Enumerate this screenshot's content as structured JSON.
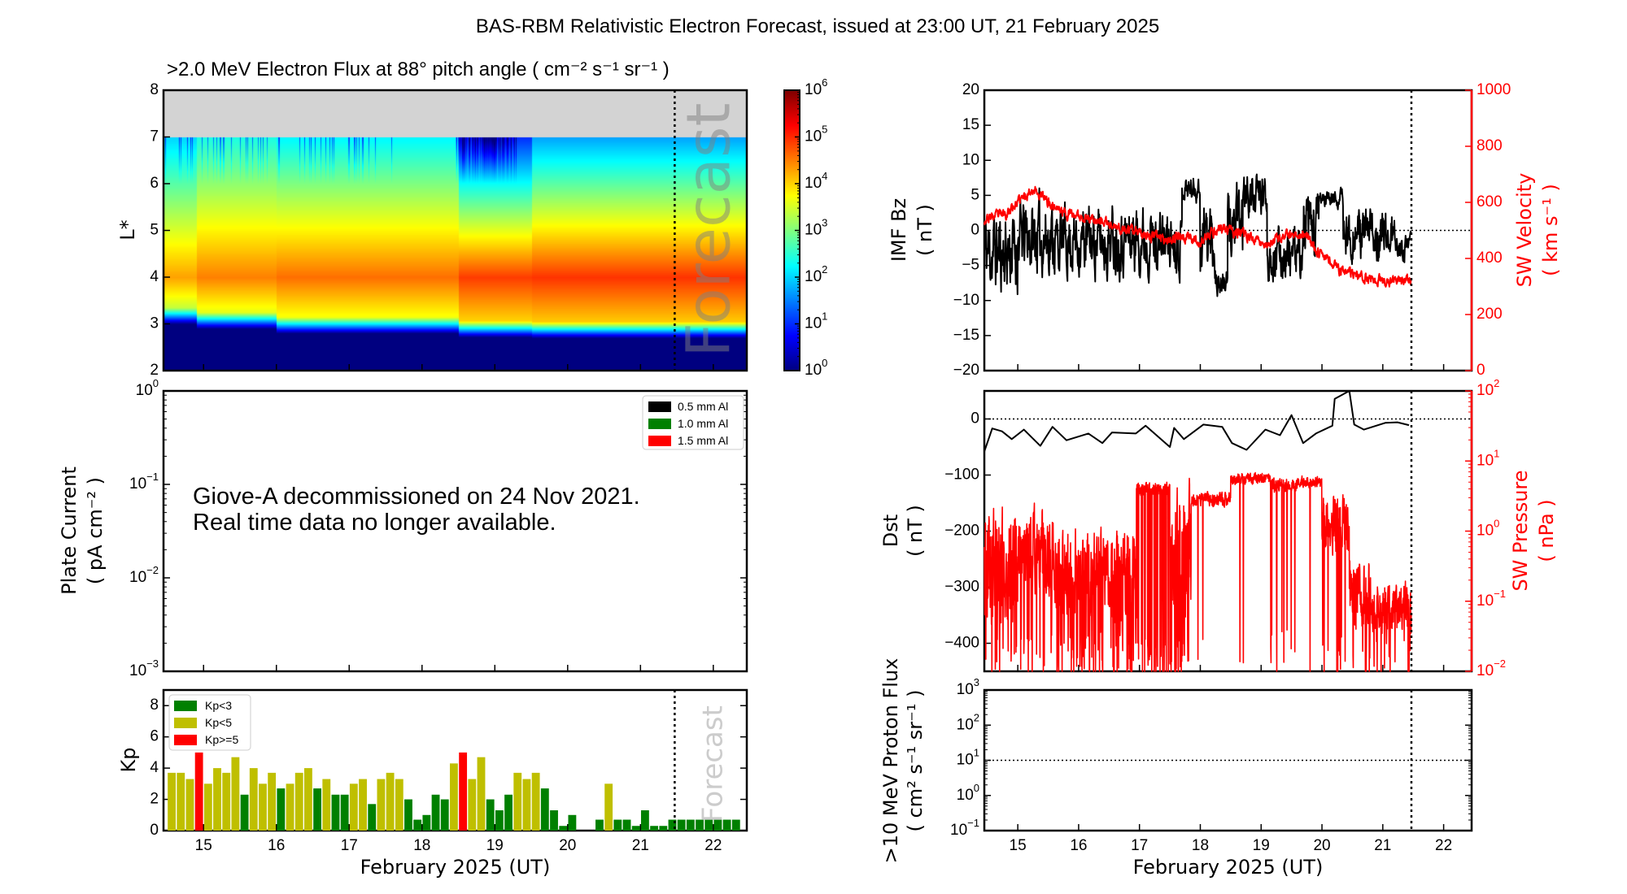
{
  "title": "BAS-RBM Relativistic Electron Forecast, issued at 23:00 UT, 21 February 2025",
  "forecast_label": "Forecast",
  "colors": {
    "kp_low": "#008000",
    "kp_mid": "#bfbf00",
    "kp_high": "#ff0000",
    "sw": "#ff0000",
    "gap": "#d3d3d3"
  },
  "chart_data": [
    {
      "id": "electron_flux",
      "type": "heatmap",
      "title": ">2.0 MeV Electron Flux at 88° pitch angle ( cm⁻² s⁻¹ sr⁻¹ )",
      "ylabel": "L*",
      "xlim": [
        14.45,
        22.46
      ],
      "ylim": [
        2,
        8
      ],
      "yticks": [
        2,
        3,
        4,
        5,
        6,
        7,
        8
      ],
      "ytick_labels": [
        "2",
        "3",
        "4",
        "5",
        "6",
        "7",
        "8"
      ],
      "forecast_start": 21.47,
      "no_data_above_L": 7,
      "colorbar": {
        "scale": "log",
        "range_exp": [
          0,
          6
        ],
        "base": "10",
        "tick_exps": [
          "0",
          "1",
          "2",
          "3",
          "4",
          "5",
          "6"
        ],
        "colormap": "jet"
      },
      "profile_segments": [
        {
          "start": 14.45,
          "end": 14.9,
          "peak_log_flux": 4.3,
          "inner_edge_L": 3.0,
          "log_flux_at_L7": 2.0
        },
        {
          "start": 14.9,
          "end": 16.0,
          "peak_log_flux": 4.5,
          "inner_edge_L": 2.9,
          "log_flux_at_L7": 2.4
        },
        {
          "start": 16.0,
          "end": 18.5,
          "peak_log_flux": 4.6,
          "inner_edge_L": 2.8,
          "log_flux_at_L7": 2.2
        },
        {
          "start": 18.5,
          "end": 19.5,
          "peak_log_flux": 4.9,
          "inner_edge_L": 2.72,
          "log_flux_at_L7": 1.0
        },
        {
          "start": 19.5,
          "end": 22.46,
          "peak_log_flux": 4.95,
          "inner_edge_L": 2.7,
          "log_flux_at_L7": 1.7
        }
      ]
    },
    {
      "id": "plate_current",
      "type": "line",
      "ylabel": "Plate Current",
      "ylabel_units": "( pA cm⁻² )",
      "yscale": "log",
      "ylim_exp": [
        -3,
        0
      ],
      "base": "10",
      "ytick_exps": [
        "−3",
        "−2",
        "−1",
        "0"
      ],
      "legend": [
        "0.5 mm Al",
        "1.0 mm Al",
        "1.5 mm Al"
      ],
      "legend_colors": [
        "#000000",
        "#008000",
        "#ff0000"
      ],
      "legend_placement": "top-right",
      "annotation": [
        "Giove-A decommissioned on 24 Nov 2021.",
        "Real time data no longer available."
      ]
    },
    {
      "id": "kp",
      "type": "bar",
      "ylabel": "Kp",
      "xlabel": "February 2025 (UT)",
      "ylim": [
        0,
        9
      ],
      "yticks": [
        0,
        2,
        4,
        6,
        8
      ],
      "ytick_labels": [
        "0",
        "2",
        "4",
        "6",
        "8"
      ],
      "xticks": [
        15,
        16,
        17,
        18,
        19,
        20,
        21,
        22
      ],
      "xtick_labels": [
        "15",
        "16",
        "17",
        "18",
        "19",
        "20",
        "21",
        "22"
      ],
      "bar_start": 14.5,
      "bar_interval_days": 0.125,
      "legend": [
        "Kp<3",
        "Kp<5",
        "Kp>=5"
      ],
      "legend_placement": "top-left",
      "values": [
        3.7,
        3.7,
        3.3,
        5,
        3,
        4,
        3.7,
        4.7,
        2.3,
        4,
        3,
        3.7,
        2.7,
        3,
        3.7,
        4,
        2.7,
        3.3,
        2.3,
        2.3,
        3,
        3.3,
        1.7,
        3.3,
        3.7,
        3.3,
        2,
        0.7,
        1,
        2.3,
        2,
        4.3,
        5,
        3.3,
        4.7,
        2,
        1.3,
        2.3,
        3.7,
        3.3,
        3.7,
        2.7,
        1.3,
        0.3,
        1,
        0,
        0,
        0.7,
        3,
        0.7,
        0.7,
        0.3,
        1.3,
        0.3,
        0.3,
        0.7,
        0.7,
        0.7,
        0.7,
        0.7,
        0.7,
        0.7,
        0.7
      ]
    },
    {
      "id": "imf_bz_sw_velocity",
      "type": "line",
      "ylabel": "IMF Bz",
      "ylabel_units": "( nT )",
      "ylim": [
        -20,
        20
      ],
      "yticks": [
        -20,
        -15,
        -10,
        -5,
        0,
        5,
        10,
        15,
        20
      ],
      "ytick_labels": [
        "−20",
        "−15",
        "−10",
        "−5",
        "0",
        "5",
        "10",
        "15",
        "20"
      ],
      "y2label": "SW Velocity",
      "y2label_units": "( km s⁻¹ )",
      "y2lim": [
        0,
        1000
      ],
      "y2ticks": [
        0,
        200,
        400,
        600,
        800,
        1000
      ],
      "y2tick_labels": [
        "0",
        "200",
        "400",
        "600",
        "800",
        "1000"
      ],
      "bz_segments": [
        [
          14.45,
          15.0,
          -3,
          5
        ],
        [
          15.0,
          15.6,
          -1,
          4.5
        ],
        [
          15.6,
          16.5,
          -1.5,
          4
        ],
        [
          16.5,
          17.2,
          -1,
          4
        ],
        [
          17.2,
          17.7,
          -1.5,
          3.5
        ],
        [
          17.7,
          18.0,
          6,
          1.5
        ],
        [
          18.0,
          18.25,
          -1,
          5
        ],
        [
          18.25,
          18.45,
          -7.5,
          1.5
        ],
        [
          18.45,
          18.7,
          1,
          4
        ],
        [
          18.7,
          19.1,
          5,
          2.5
        ],
        [
          19.1,
          19.7,
          -3.5,
          3
        ],
        [
          19.7,
          19.95,
          0,
          4
        ],
        [
          19.95,
          20.35,
          4.5,
          1.2
        ],
        [
          20.35,
          21.2,
          -0.5,
          3
        ],
        [
          21.2,
          21.47,
          -2.5,
          1.5
        ]
      ],
      "velocity_keypoints": [
        [
          14.45,
          540
        ],
        [
          14.8,
          560
        ],
        [
          15.1,
          620
        ],
        [
          15.25,
          650
        ],
        [
          15.5,
          600
        ],
        [
          15.8,
          560
        ],
        [
          16.3,
          540
        ],
        [
          16.6,
          510
        ],
        [
          17.0,
          490
        ],
        [
          17.5,
          470
        ],
        [
          17.8,
          480
        ],
        [
          18.0,
          455
        ],
        [
          18.3,
          510
        ],
        [
          18.6,
          490
        ],
        [
          18.9,
          470
        ],
        [
          19.1,
          450
        ],
        [
          19.5,
          485
        ],
        [
          19.75,
          490
        ],
        [
          19.85,
          440
        ],
        [
          20.1,
          400
        ],
        [
          20.3,
          355
        ],
        [
          20.6,
          335
        ],
        [
          21.0,
          320
        ],
        [
          21.47,
          320
        ]
      ]
    },
    {
      "id": "dst_sw_pressure",
      "type": "line",
      "ylabel": "Dst",
      "ylabel_units": "( nT )",
      "ylim": [
        -450,
        50
      ],
      "yticks": [
        -400,
        -300,
        -200,
        -100,
        0
      ],
      "ytick_labels": [
        "−400",
        "−300",
        "−200",
        "−100",
        "0"
      ],
      "y2label": "SW Pressure",
      "y2label_units": "( nPa )",
      "y2scale": "log",
      "y2lim_exp": [
        -2,
        2
      ],
      "base": "10",
      "y2tick_exps": [
        "−2",
        "−1",
        "0",
        "1",
        "2"
      ],
      "dst_points": [
        [
          14.45,
          -58
        ],
        [
          14.58,
          -17
        ],
        [
          14.74,
          -22
        ],
        [
          14.9,
          -36
        ],
        [
          15.1,
          -19
        ],
        [
          15.37,
          -48
        ],
        [
          15.57,
          -14
        ],
        [
          15.8,
          -38
        ],
        [
          16.16,
          -26
        ],
        [
          16.39,
          -43
        ],
        [
          16.55,
          -24
        ],
        [
          16.94,
          -26
        ],
        [
          17.1,
          -12
        ],
        [
          17.5,
          -50
        ],
        [
          17.57,
          -16
        ],
        [
          17.73,
          -36
        ],
        [
          18.05,
          -10
        ],
        [
          18.36,
          -14
        ],
        [
          18.52,
          -43
        ],
        [
          18.76,
          -55
        ],
        [
          19.07,
          -19
        ],
        [
          19.31,
          -29
        ],
        [
          19.5,
          7
        ],
        [
          19.69,
          -43
        ],
        [
          19.9,
          -26
        ],
        [
          20.17,
          -12
        ],
        [
          20.21,
          36
        ],
        [
          20.45,
          55
        ],
        [
          20.53,
          -10
        ],
        [
          20.69,
          -19
        ],
        [
          21.04,
          -7
        ],
        [
          21.24,
          -6
        ],
        [
          21.43,
          -11
        ]
      ],
      "pressure_segments": [
        [
          14.45,
          15.0,
          -0.5,
          0.8,
          0.1
        ],
        [
          15.0,
          15.6,
          -0.3,
          0.6,
          0.12
        ],
        [
          15.6,
          16.5,
          -0.6,
          0.6,
          0.15
        ],
        [
          16.5,
          16.95,
          -0.8,
          0.8,
          0.2
        ],
        [
          16.95,
          17.5,
          0.6,
          0.1,
          0.25
        ],
        [
          17.5,
          17.85,
          -0.3,
          0.9,
          0.2
        ],
        [
          17.85,
          18.5,
          0.45,
          0.1,
          0.03
        ],
        [
          18.5,
          19.15,
          0.75,
          0.08,
          0.02
        ],
        [
          19.15,
          19.6,
          0.65,
          0.1,
          0.05
        ],
        [
          19.6,
          20.0,
          0.7,
          0.08,
          0.01
        ],
        [
          20.0,
          20.45,
          0.1,
          0.4,
          0.05
        ],
        [
          20.45,
          20.8,
          -0.9,
          0.5,
          0.1
        ],
        [
          20.8,
          21.47,
          -1.1,
          0.35,
          0.08
        ]
      ]
    },
    {
      "id": "proton_flux",
      "type": "line",
      "ylabel": ">10 MeV Proton Flux",
      "ylabel_units": "( cm² s⁻¹ sr⁻¹ )",
      "xlabel": "February 2025 (UT)",
      "yscale": "log",
      "ylim_exp": [
        -1,
        3
      ],
      "base": "10",
      "ytick_exps": [
        "−1",
        "0",
        "1",
        "2",
        "3"
      ],
      "threshold": 10,
      "xticks": [
        15,
        16,
        17,
        18,
        19,
        20,
        21,
        22
      ],
      "xtick_labels": [
        "15",
        "16",
        "17",
        "18",
        "19",
        "20",
        "21",
        "22"
      ]
    }
  ]
}
